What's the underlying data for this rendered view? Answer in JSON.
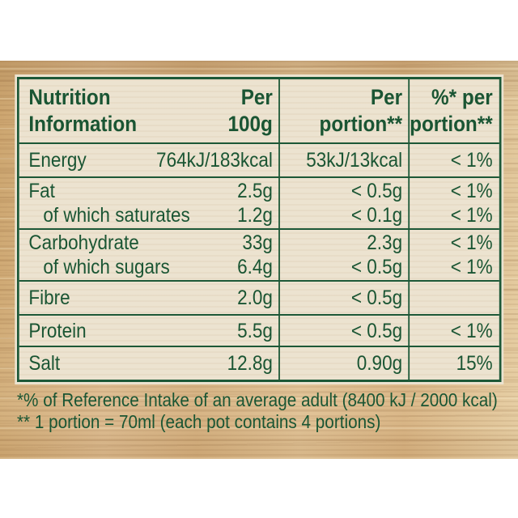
{
  "colors": {
    "text_green": "#1a5533",
    "border_green": "#1d5837",
    "panel_cream": "#ece3d0",
    "wood_tan": "#d4b083",
    "page_white": "#ffffff"
  },
  "table": {
    "header": {
      "title_lines": [
        "Nutrition",
        "Information"
      ],
      "per100_lines": [
        "Per",
        "100g"
      ],
      "portion_lines": [
        "Per",
        "portion**"
      ],
      "percent_lines": [
        "%* per",
        "portion**"
      ]
    },
    "rows": [
      {
        "label": "Energy",
        "per100": "764kJ/183kcal",
        "portion": "53kJ/13kcal",
        "percent": "< 1%"
      },
      {
        "label": "Fat",
        "per100": "2.5g",
        "portion": "< 0.5g",
        "percent": "< 1%",
        "sub_label": "of which saturates",
        "sub_per100": "1.2g",
        "sub_portion": "< 0.1g",
        "sub_percent": "< 1%"
      },
      {
        "label": "Carbohydrate",
        "per100": "33g",
        "portion": "2.3g",
        "percent": "< 1%",
        "sub_label": "of which sugars",
        "sub_per100": "6.4g",
        "sub_portion": "< 0.5g",
        "sub_percent": "< 1%"
      },
      {
        "label": "Fibre",
        "per100": "2.0g",
        "portion": "< 0.5g",
        "percent": ""
      },
      {
        "label": "Protein",
        "per100": "5.5g",
        "portion": "< 0.5g",
        "percent": "< 1%"
      },
      {
        "label": "Salt",
        "per100": "12.8g",
        "portion": "0.90g",
        "percent": "15%"
      }
    ]
  },
  "footnotes": {
    "line1": "*% of Reference Intake of an average adult (8400 kJ / 2000 kcal)",
    "line2": "** 1 portion = 70ml (each pot contains 4 portions)"
  }
}
